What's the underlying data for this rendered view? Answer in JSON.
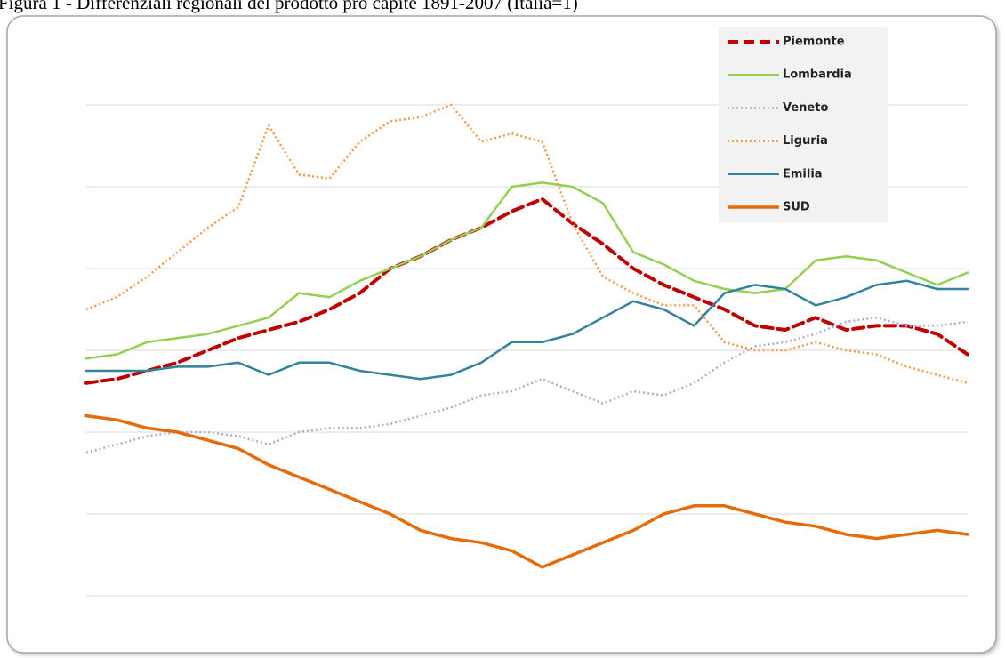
{
  "chart_data": {
    "type": "line",
    "title": "Figura 1 - Differenziali regionali del prodotto pro capite 1891-2007 (Italia=1)",
    "ylim": [
      0.4,
      1.6
    ],
    "yticks": [
      0.4,
      0.6,
      0.8,
      1.0,
      1.2,
      1.4,
      1.6
    ],
    "grid": true,
    "legend": "upper right",
    "series": [
      {
        "name": "Piemonte",
        "color": "#c00000",
        "line_style": "dashed",
        "width": 4,
        "values": [
          0.92,
          0.93,
          0.95,
          0.97,
          1.0,
          1.03,
          1.05,
          1.07,
          1.1,
          1.14,
          1.2,
          1.23,
          1.27,
          1.3,
          1.34,
          1.37,
          1.31,
          1.26,
          1.2,
          1.16,
          1.13,
          1.1,
          1.06,
          1.05,
          1.08,
          1.05,
          1.06,
          1.06,
          1.04,
          0.99
        ]
      },
      {
        "name": "Lombardia",
        "color": "#92d050",
        "line_style": "solid",
        "width": 2.5,
        "values": [
          0.98,
          0.99,
          1.02,
          1.03,
          1.04,
          1.06,
          1.08,
          1.14,
          1.13,
          1.17,
          1.2,
          1.23,
          1.27,
          1.3,
          1.4,
          1.41,
          1.4,
          1.36,
          1.24,
          1.21,
          1.17,
          1.15,
          1.14,
          1.15,
          1.22,
          1.23,
          1.22,
          1.19,
          1.16,
          1.19
        ]
      },
      {
        "name": "Veneto",
        "color": "#b4a7d6",
        "line_style": "dotted",
        "width": 2.5,
        "values": [
          0.75,
          0.77,
          0.79,
          0.8,
          0.8,
          0.79,
          0.77,
          0.8,
          0.81,
          0.81,
          0.82,
          0.84,
          0.86,
          0.89,
          0.9,
          0.93,
          0.9,
          0.87,
          0.9,
          0.89,
          0.92,
          0.97,
          1.01,
          1.02,
          1.04,
          1.07,
          1.08,
          1.06,
          1.06,
          1.07
        ]
      },
      {
        "name": "Liguria",
        "color": "#f79646",
        "line_style": "dotted",
        "width": 2.5,
        "values": [
          1.1,
          1.13,
          1.18,
          1.24,
          1.3,
          1.35,
          1.55,
          1.43,
          1.42,
          1.51,
          1.56,
          1.57,
          1.6,
          1.51,
          1.53,
          1.51,
          1.31,
          1.18,
          1.14,
          1.11,
          1.11,
          1.02,
          1.0,
          1.0,
          1.02,
          1.0,
          0.99,
          0.96,
          0.94,
          0.92
        ]
      },
      {
        "name": "Emilia",
        "color": "#31849b",
        "line_style": "solid",
        "width": 2.5,
        "values": [
          0.95,
          0.95,
          0.95,
          0.96,
          0.96,
          0.97,
          0.94,
          0.97,
          0.97,
          0.95,
          0.94,
          0.93,
          0.94,
          0.97,
          1.02,
          1.02,
          1.04,
          1.08,
          1.12,
          1.1,
          1.06,
          1.14,
          1.16,
          1.15,
          1.11,
          1.13,
          1.16,
          1.17,
          1.15,
          1.15
        ]
      },
      {
        "name": "SUD",
        "color": "#e46c0a",
        "line_style": "solid",
        "width": 3.5,
        "values": [
          0.84,
          0.83,
          0.81,
          0.8,
          0.78,
          0.76,
          0.72,
          0.69,
          0.66,
          0.63,
          0.6,
          0.56,
          0.54,
          0.53,
          0.51,
          0.47,
          0.5,
          0.53,
          0.56,
          0.6,
          0.62,
          0.62,
          0.6,
          0.58,
          0.57,
          0.55,
          0.54,
          0.55,
          0.56,
          0.55
        ]
      }
    ]
  }
}
